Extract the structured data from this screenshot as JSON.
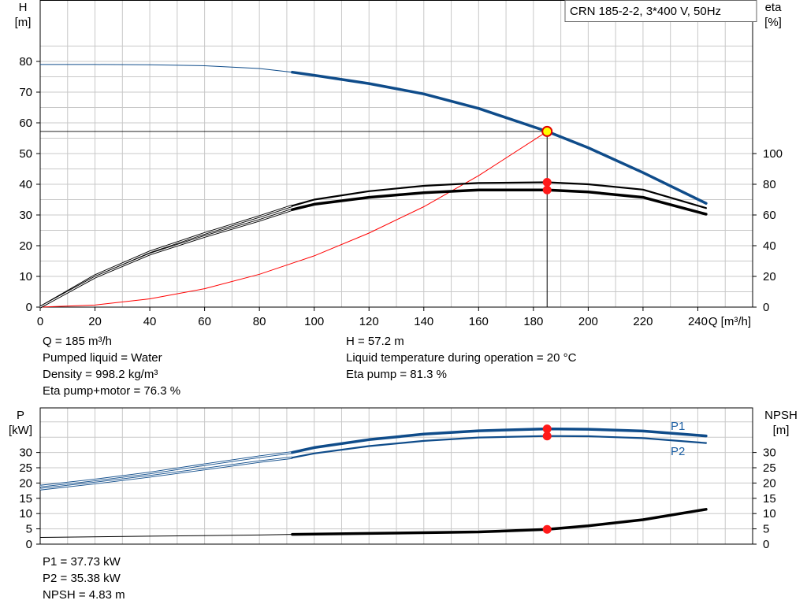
{
  "chart_data": [
    {
      "type": "line",
      "title": "CRN 185-2-2, 3*400 V, 50Hz",
      "xlabel": "Q [m³/h]",
      "ylabel": "H\n[m]",
      "y2label": "eta\n[%]",
      "xlim": [
        0,
        260
      ],
      "ylim": [
        0,
        90
      ],
      "y2lim": [
        0,
        180
      ],
      "xticks": [
        0,
        20,
        40,
        60,
        80,
        100,
        120,
        140,
        160,
        180,
        200,
        220,
        240
      ],
      "yticks": [
        0,
        10,
        20,
        30,
        40,
        50,
        60,
        70,
        80
      ],
      "y2ticks": [
        0,
        20,
        40,
        60,
        80,
        100
      ],
      "grid": true,
      "series": [
        {
          "axis": "left",
          "color": "#0f4c8a",
          "x": [
            0,
            20,
            40,
            60,
            80,
            92,
            100,
            120,
            140,
            160,
            185,
            200,
            220,
            243
          ],
          "y": [
            79,
            79,
            78.9,
            78.6,
            77.7,
            76.5,
            75.5,
            72.8,
            69.4,
            64.7,
            57.2,
            51.9,
            43.8,
            33.8
          ]
        },
        {
          "axis": "right",
          "color": "#000000",
          "x": [
            0,
            20,
            40,
            60,
            80,
            92,
            100,
            120,
            140,
            160,
            185,
            200,
            220,
            243
          ],
          "y": [
            0,
            20.5,
            36,
            48,
            59,
            66,
            70,
            75.5,
            79,
            80.8,
            81.3,
            80,
            76.5,
            64.5
          ]
        },
        {
          "axis": "right",
          "color": "#000000",
          "x": [
            0,
            20,
            40,
            60,
            80,
            92,
            100,
            120,
            140,
            160,
            185,
            200,
            220,
            243
          ],
          "y": [
            0,
            19.5,
            34.5,
            46,
            56.5,
            63.5,
            67,
            71.5,
            74.5,
            76.3,
            76.3,
            75,
            71.5,
            60.5
          ]
        },
        {
          "axis": "left",
          "color": "#ff0000",
          "x": [
            0,
            20,
            40,
            60,
            80,
            100,
            120,
            140,
            160,
            185
          ],
          "y": [
            0,
            0.67,
            2.7,
            6.0,
            10.7,
            16.7,
            24.1,
            32.7,
            42.8,
            57.2
          ]
        }
      ],
      "operating_point": {
        "x": 185,
        "y": 57.2
      },
      "markers": [
        {
          "x": 185,
          "y": 81.3,
          "axis": "right"
        },
        {
          "x": 185,
          "y": 76.3,
          "axis": "right"
        }
      ],
      "info_left": [
        "Q = 185 m³/h",
        "Pumped liquid = Water",
        "Density = 998.2 kg/m³",
        "Eta pump+motor = 76.3 %"
      ],
      "info_right": [
        "H = 57.2 m",
        "Liquid temperature during operation = 20 °C",
        "Eta pump = 81.3 %"
      ]
    },
    {
      "type": "line",
      "ylabel": "P\n[kW]",
      "y2label": "NPSH\n[m]",
      "xlim": [
        0,
        260
      ],
      "ylim": [
        0,
        45
      ],
      "y2lim": [
        0,
        45
      ],
      "yticks": [
        0,
        5,
        10,
        15,
        20,
        25,
        30
      ],
      "y2ticks": [
        0,
        5,
        10,
        15,
        20,
        25,
        30
      ],
      "grid": true,
      "series": [
        {
          "name": "P1",
          "axis": "left",
          "color": "#0f4c8a",
          "x": [
            0,
            20,
            40,
            60,
            80,
            92,
            100,
            120,
            140,
            160,
            185,
            200,
            220,
            243
          ],
          "y": [
            19,
            21,
            23.3,
            26,
            28.6,
            30,
            31.6,
            34.2,
            36,
            37.1,
            37.73,
            37.6,
            37,
            35.4
          ]
        },
        {
          "name": "P2",
          "axis": "left",
          "color": "#0f4c8a",
          "x": [
            0,
            20,
            40,
            60,
            80,
            92,
            100,
            120,
            140,
            160,
            185,
            200,
            220,
            243
          ],
          "y": [
            18,
            20,
            22.2,
            24.6,
            27,
            28.3,
            29.7,
            32.1,
            33.8,
            34.9,
            35.38,
            35.3,
            34.7,
            33.1
          ]
        },
        {
          "axis": "right",
          "color": "#000000",
          "x": [
            0,
            40,
            80,
            92,
            120,
            160,
            185,
            200,
            220,
            243
          ],
          "y": [
            2.2,
            2.6,
            3.0,
            3.2,
            3.5,
            4.0,
            4.83,
            6.0,
            8.0,
            11.4
          ]
        }
      ],
      "markers": [
        {
          "x": 185,
          "y": 37.73,
          "axis": "left"
        },
        {
          "x": 185,
          "y": 35.38,
          "axis": "left"
        },
        {
          "x": 185,
          "y": 4.83,
          "axis": "right"
        }
      ],
      "info": [
        "P1 = 37.73 kW",
        "P2 = 35.38 kW",
        "NPSH = 4.83 m"
      ]
    }
  ]
}
